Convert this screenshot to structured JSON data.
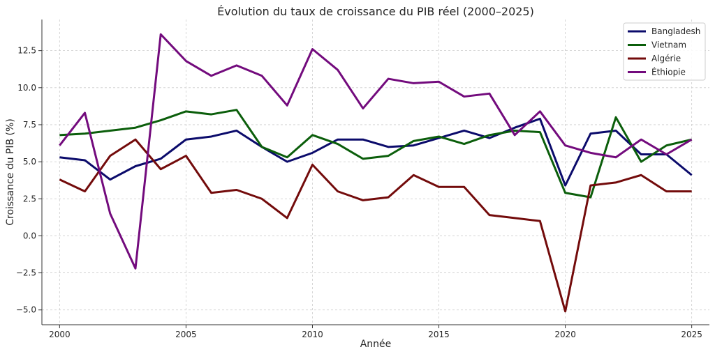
{
  "chart_data": {
    "type": "line",
    "title": "Évolution du taux de croissance du PIB réel (2000–2025)",
    "xlabel": "Année",
    "ylabel": "Croissance du PIB (%)",
    "xlim": [
      1999.3,
      2025.7
    ],
    "ylim": [
      -6.0,
      14.6
    ],
    "xticks": [
      2000,
      2005,
      2010,
      2015,
      2020,
      2025
    ],
    "xtick_labels": [
      "2000",
      "2005",
      "2010",
      "2015",
      "2020",
      "2025"
    ],
    "yticks": [
      -5.0,
      -2.5,
      0.0,
      2.5,
      5.0,
      7.5,
      10.0,
      12.5
    ],
    "ytick_labels": [
      "−5.0",
      "−2.5",
      "0.0",
      "2.5",
      "5.0",
      "7.5",
      "10.0",
      "12.5"
    ],
    "grid": true,
    "legend_position": "top-right",
    "x": [
      2000,
      2001,
      2002,
      2003,
      2004,
      2005,
      2006,
      2007,
      2008,
      2009,
      2010,
      2011,
      2012,
      2013,
      2014,
      2015,
      2016,
      2017,
      2018,
      2019,
      2020,
      2021,
      2022,
      2023,
      2024,
      2025
    ],
    "series": [
      {
        "name": "Bangladesh",
        "color": "#0b0b6b",
        "values": [
          5.3,
          5.1,
          3.8,
          4.7,
          5.2,
          6.5,
          6.7,
          7.1,
          6.0,
          5.0,
          5.6,
          6.5,
          6.5,
          6.0,
          6.1,
          6.6,
          7.1,
          6.6,
          7.3,
          7.9,
          3.4,
          6.9,
          7.1,
          5.5,
          5.5,
          4.1
        ]
      },
      {
        "name": "Vietnam",
        "color": "#0b5e0b",
        "values": [
          6.8,
          6.9,
          7.1,
          7.3,
          7.8,
          8.4,
          8.2,
          8.5,
          6.0,
          5.3,
          6.8,
          6.2,
          5.2,
          5.4,
          6.4,
          6.7,
          6.2,
          6.8,
          7.1,
          7.0,
          2.9,
          2.6,
          8.0,
          5.0,
          6.1,
          6.5
        ]
      },
      {
        "name": "Algérie",
        "color": "#730b0b",
        "values": [
          3.8,
          3.0,
          5.4,
          6.5,
          4.5,
          5.4,
          2.9,
          3.1,
          2.5,
          1.2,
          4.8,
          3.0,
          2.4,
          2.6,
          4.1,
          3.3,
          3.3,
          1.4,
          1.2,
          1.0,
          -5.1,
          3.4,
          3.6,
          4.1,
          3.0,
          3.0
        ]
      },
      {
        "name": "Éthiopie",
        "color": "#730b7d",
        "values": [
          6.1,
          8.3,
          1.5,
          -2.2,
          13.6,
          11.8,
          10.8,
          11.5,
          10.8,
          8.8,
          12.6,
          11.2,
          8.6,
          10.6,
          10.3,
          10.4,
          9.4,
          9.6,
          6.8,
          8.4,
          6.1,
          5.6,
          5.3,
          6.5,
          5.5,
          6.5
        ]
      }
    ]
  }
}
